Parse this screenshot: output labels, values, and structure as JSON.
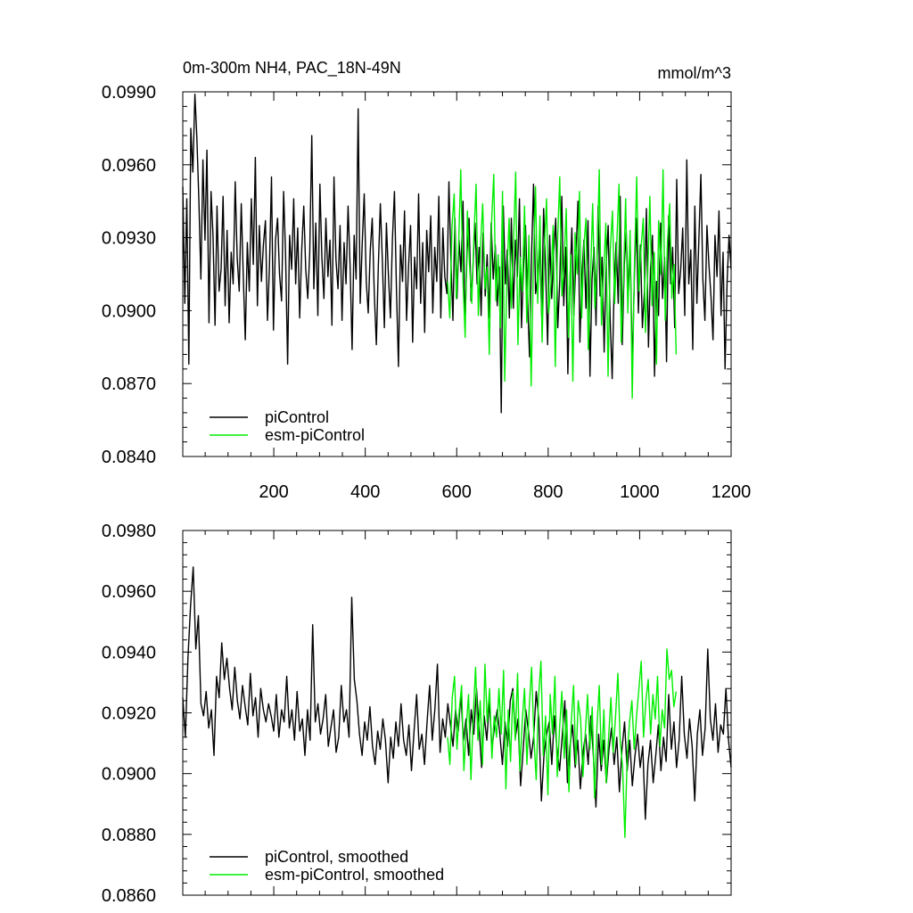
{
  "chart_data": [
    {
      "type": "line",
      "title": "0m-300m NH4, PAC_18N-49N",
      "units": "mmol/m^3",
      "xlim": [
        1,
        1200
      ],
      "ylim": [
        0.084,
        0.099
      ],
      "x_tick_labels": [
        "200",
        "400",
        "600",
        "800",
        "1000",
        "1200"
      ],
      "y_tick_labels": [
        "0.0840",
        "0.0870",
        "0.0900",
        "0.0930",
        "0.0960",
        "0.0990"
      ],
      "grid": false,
      "legend": "bottom-left",
      "series": [
        {
          "name": "piControl",
          "color": "#000000",
          "x_start": 1,
          "x_end": 1200,
          "values": [
            0.0951,
            0.0903,
            0.0946,
            0.0878,
            0.0975,
            0.0957,
            0.0989,
            0.0971,
            0.0945,
            0.0913,
            0.0962,
            0.0929,
            0.0966,
            0.0895,
            0.0949,
            0.0931,
            0.0894,
            0.0943,
            0.0908,
            0.0917,
            0.0947,
            0.0902,
            0.0933,
            0.0895,
            0.0924,
            0.0911,
            0.0953,
            0.0922,
            0.0908,
            0.0944,
            0.0915,
            0.0888,
            0.0928,
            0.0908,
            0.0946,
            0.0919,
            0.0963,
            0.0902,
            0.0935,
            0.0912,
            0.0927,
            0.0937,
            0.0896,
            0.0918,
            0.0955,
            0.0892,
            0.0929,
            0.0938,
            0.0915,
            0.0904,
            0.0949,
            0.0923,
            0.0878,
            0.0931,
            0.0917,
            0.0946,
            0.0911,
            0.0934,
            0.0897,
            0.0925,
            0.0943,
            0.0917,
            0.0905,
            0.0924,
            0.0972,
            0.0909,
            0.0936,
            0.0898,
            0.0952,
            0.0922,
            0.0905,
            0.0938,
            0.0914,
            0.0929,
            0.0894,
            0.0955,
            0.0921,
            0.0909,
            0.0935,
            0.0896,
            0.0928,
            0.0911,
            0.0943,
            0.0918,
            0.0884,
            0.0931,
            0.0913,
            0.0983,
            0.0903,
            0.0927,
            0.0948,
            0.0912,
            0.0899,
            0.0925,
            0.0938,
            0.0907,
            0.0886,
            0.0918,
            0.0944,
            0.0921,
            0.0893,
            0.0936,
            0.0915,
            0.0897,
            0.0929,
            0.0949,
            0.0908,
            0.0877,
            0.0927,
            0.0912,
            0.0941,
            0.0896,
            0.0918,
            0.0935,
            0.0887,
            0.0922,
            0.0909,
            0.0948,
            0.0903,
            0.0928,
            0.0891,
            0.0933,
            0.0916,
            0.0939,
            0.0899,
            0.0926,
            0.0912,
            0.0947,
            0.0897,
            0.0934,
            0.0914,
            0.0907,
            0.0953,
            0.0921,
            0.0896,
            0.0938,
            0.0905,
            0.0929,
            0.0916,
            0.0945,
            0.0893,
            0.0924,
            0.0938,
            0.0904,
            0.0919,
            0.0936,
            0.0911,
            0.0926,
            0.0898,
            0.0932,
            0.0906,
            0.0923,
            0.0897,
            0.0936,
            0.0913,
            0.0927,
            0.0902,
            0.0918,
            0.0858,
            0.0943,
            0.0911,
            0.0925,
            0.0897,
            0.0938,
            0.0901,
            0.0929,
            0.0914,
            0.0946,
            0.0893,
            0.0917,
            0.0935,
            0.0906,
            0.0881,
            0.0923,
            0.0952,
            0.0907,
            0.0913,
            0.0929,
            0.0898,
            0.0942,
            0.0916,
            0.0886,
            0.0931,
            0.0905,
            0.0924,
            0.0938,
            0.0893,
            0.0912,
            0.0947,
            0.0902,
            0.0926,
            0.0874,
            0.0911,
            0.0934,
            0.0898,
            0.0921,
            0.0945,
            0.0887,
            0.0915,
            0.0929,
            0.0901,
            0.0937,
            0.0873,
            0.0913,
            0.0926,
            0.0894,
            0.0943,
            0.0906,
            0.0922,
            0.0883,
            0.0918,
            0.0935,
            0.0897,
            0.0872,
            0.0911,
            0.0928,
            0.0903,
            0.0947,
            0.0886,
            0.0919,
            0.0932,
            0.0907,
            0.0925,
            0.0876,
            0.0914,
            0.0938,
            0.0899,
            0.0927,
            0.0893,
            0.0908,
            0.0942,
            0.0885,
            0.0917,
            0.0931,
            0.0873,
            0.0912,
            0.0898,
            0.0936,
            0.0905,
            0.0922,
            0.0879,
            0.0939,
            0.0911,
            0.0926,
            0.0893,
            0.0954,
            0.0907,
            0.0917,
            0.0934,
            0.0898,
            0.0962,
            0.0911,
            0.0925,
            0.0884,
            0.0943,
            0.0903,
            0.0929,
            0.0956,
            0.0913,
            0.0896,
            0.0935,
            0.0919,
            0.0906,
            0.0888,
            0.0931,
            0.0914,
            0.0941,
            0.0898,
            0.0924,
            0.0876,
            0.0912,
            0.0931,
            0.0917
          ]
        },
        {
          "name": "esm-piControl",
          "color": "#00ee00",
          "x_start": 580,
          "x_end": 1080,
          "values": [
            0.0912,
            0.0897,
            0.0934,
            0.0948,
            0.0905,
            0.0926,
            0.0958,
            0.0913,
            0.0889,
            0.0941,
            0.0919,
            0.0903,
            0.0931,
            0.0952,
            0.0898,
            0.0927,
            0.0944,
            0.0909,
            0.0918,
            0.0882,
            0.0936,
            0.0956,
            0.0904,
            0.0923,
            0.0893,
            0.0949,
            0.0871,
            0.0915,
            0.0938,
            0.0901,
            0.0929,
            0.0957,
            0.0886,
            0.0922,
            0.0908,
            0.0943,
            0.0895,
            0.0931,
            0.0869,
            0.0917,
            0.0951,
            0.0903,
            0.0939,
            0.0887,
            0.0925,
            0.0946,
            0.0899,
            0.0911,
            0.0935,
            0.0877,
            0.0928,
            0.0955,
            0.0906,
            0.0919,
            0.0942,
            0.0889,
            0.0923,
            0.0871,
            0.0932,
            0.0915,
            0.0949,
            0.0897,
            0.0927,
            0.0938,
            0.0884,
            0.0913,
            0.0944,
            0.0901,
            0.0921,
            0.0958,
            0.0894,
            0.0916,
            0.0936,
            0.0873,
            0.0925,
            0.0941,
            0.0903,
            0.0929,
            0.0952,
            0.0887,
            0.0912,
            0.0946,
            0.0899,
            0.0933,
            0.0864,
            0.0919,
            0.0955,
            0.0908,
            0.0926,
            0.0938,
            0.0891,
            0.0914,
            0.0947,
            0.0902,
            0.0924,
            0.0878,
            0.0937,
            0.0915,
            0.0958,
            0.0896,
            0.0928,
            0.0944,
            0.0905,
            0.0919,
            0.0882
          ]
        }
      ]
    },
    {
      "type": "line",
      "xlim": [
        1,
        1200
      ],
      "ylim": [
        0.086,
        0.098
      ],
      "y_tick_labels": [
        "0.0860",
        "0.0880",
        "0.0900",
        "0.0920",
        "0.0940",
        "0.0960",
        "0.0980"
      ],
      "grid": false,
      "legend": "bottom-left",
      "series": [
        {
          "name": "piControl, smoothed",
          "color": "#000000",
          "x_start": 1,
          "x_end": 1200,
          "values": [
            0.0925,
            0.0912,
            0.0938,
            0.0955,
            0.0968,
            0.0941,
            0.0952,
            0.0923,
            0.0919,
            0.0927,
            0.0915,
            0.0921,
            0.0906,
            0.0932,
            0.0925,
            0.0943,
            0.0931,
            0.0938,
            0.0928,
            0.0921,
            0.0935,
            0.0924,
            0.0918,
            0.0929,
            0.0922,
            0.0916,
            0.0933,
            0.0919,
            0.0925,
            0.0912,
            0.0928,
            0.0921,
            0.0917,
            0.0923,
            0.0919,
            0.0914,
            0.0926,
            0.0912,
            0.0921,
            0.0917,
            0.0932,
            0.0915,
            0.0921,
            0.0911,
            0.0927,
            0.0914,
            0.0918,
            0.0906,
            0.0921,
            0.0911,
            0.0949,
            0.0917,
            0.0923,
            0.0913,
            0.0918,
            0.0926,
            0.0909,
            0.0915,
            0.0921,
            0.0907,
            0.0912,
            0.0929,
            0.0917,
            0.0921,
            0.0912,
            0.0958,
            0.0931,
            0.0924,
            0.0913,
            0.0906,
            0.0917,
            0.0911,
            0.0922,
            0.0909,
            0.0903,
            0.0914,
            0.0908,
            0.0918,
            0.0911,
            0.0897,
            0.0912,
            0.0905,
            0.0917,
            0.0909,
            0.0923,
            0.0911,
            0.0906,
            0.0916,
            0.0901,
            0.0914,
            0.0926,
            0.0908,
            0.0913,
            0.0903,
            0.0917,
            0.0929,
            0.0911,
            0.0921,
            0.0936,
            0.0907,
            0.0918,
            0.0912,
            0.0923,
            0.0916,
            0.0909,
            0.0921,
            0.0914,
            0.0926,
            0.0911,
            0.0918,
            0.0906,
            0.0921,
            0.0913,
            0.0928,
            0.0915,
            0.0902,
            0.0919,
            0.0911,
            0.0924,
            0.0908,
            0.0916,
            0.0921,
            0.0913,
            0.0903,
            0.0917,
            0.0909,
            0.0924,
            0.0928,
            0.0912,
            0.0918,
            0.0896,
            0.0908,
            0.0921,
            0.0914,
            0.0905,
            0.0912,
            0.0927,
            0.0918,
            0.0891,
            0.0906,
            0.0913,
            0.0917,
            0.0903,
            0.0919,
            0.0908,
            0.0901,
            0.0912,
            0.0924,
            0.0897,
            0.0909,
            0.0916,
            0.0902,
            0.0911,
            0.0895,
            0.0907,
            0.0913,
            0.0903,
            0.0919,
            0.0906,
            0.0889,
            0.0913,
            0.0901,
            0.0911,
            0.0897,
            0.0908,
            0.0915,
            0.0903,
            0.0912,
            0.0894,
            0.0908,
            0.0917,
            0.0901,
            0.0911,
            0.0896,
            0.0906,
            0.0913,
            0.0902,
            0.0909,
            0.0885,
            0.0903,
            0.0911,
            0.0897,
            0.0906,
            0.0916,
            0.0901,
            0.0912,
            0.0904,
            0.0926,
            0.0908,
            0.0917,
            0.0902,
            0.0911,
            0.0932,
            0.0913,
            0.0905,
            0.0918,
            0.0909,
            0.0891,
            0.0913,
            0.0921,
            0.0906,
            0.0915,
            0.0941,
            0.0918,
            0.0911,
            0.0923,
            0.0907,
            0.0916,
            0.0913,
            0.0928,
            0.0911,
            0.0902
          ]
        },
        {
          "name": "esm-piControl, smoothed",
          "color": "#00ee00",
          "x_start": 580,
          "x_end": 1080,
          "values": [
            0.0912,
            0.0903,
            0.0925,
            0.0932,
            0.0908,
            0.0921,
            0.0929,
            0.0901,
            0.0915,
            0.0926,
            0.0898,
            0.0919,
            0.0935,
            0.0911,
            0.0924,
            0.0903,
            0.0936,
            0.0917,
            0.0928,
            0.0905,
            0.0919,
            0.0912,
            0.0928,
            0.0913,
            0.0934,
            0.0895,
            0.0921,
            0.0904,
            0.0927,
            0.0911,
            0.0933,
            0.0901,
            0.0917,
            0.0928,
            0.0903,
            0.0922,
            0.0935,
            0.0912,
            0.0898,
            0.0925,
            0.0937,
            0.0906,
            0.0919,
            0.0893,
            0.0926,
            0.0913,
            0.0932,
            0.0899,
            0.0915,
            0.0927,
            0.0905,
            0.0921,
            0.0894,
            0.0917,
            0.0929,
            0.0903,
            0.0924,
            0.0918,
            0.0899,
            0.0913,
            0.0926,
            0.0908,
            0.0922,
            0.0892,
            0.0915,
            0.0929,
            0.0903,
            0.0921,
            0.0897,
            0.0912,
            0.0925,
            0.0907,
            0.0919,
            0.0933,
            0.0911,
            0.0902,
            0.0879,
            0.0906,
            0.0917,
            0.0924,
            0.0908,
            0.0919,
            0.0928,
            0.0937,
            0.0912,
            0.0924,
            0.0931,
            0.0913,
            0.0926,
            0.0918,
            0.0932,
            0.0909,
            0.0921,
            0.0915,
            0.0941,
            0.0931,
            0.0934,
            0.0922,
            0.0927
          ]
        }
      ]
    }
  ]
}
